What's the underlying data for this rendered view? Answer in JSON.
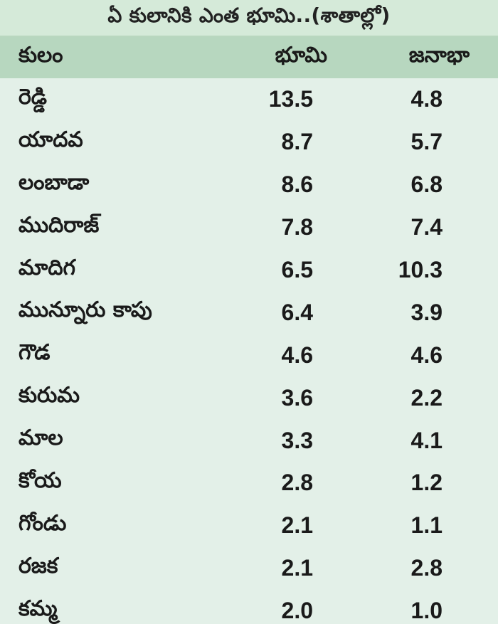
{
  "chart_data": {
    "type": "table",
    "title": "ఏ కులానికి ఎంత భూమి..(శాతాల్లో)",
    "columns": [
      "కులం",
      "భూమి",
      "జనాభా"
    ],
    "rows": [
      {
        "caste": "రెడ్డి",
        "land": "13.5",
        "population": "4.8"
      },
      {
        "caste": "యాదవ",
        "land": "8.7",
        "population": "5.7"
      },
      {
        "caste": "లంబాడా",
        "land": "8.6",
        "population": "6.8"
      },
      {
        "caste": "ముదిరాజ్",
        "land": "7.8",
        "population": "7.4"
      },
      {
        "caste": "మాదిగ",
        "land": "6.5",
        "population": "10.3"
      },
      {
        "caste": "మున్నూరు కాపు",
        "land": "6.4",
        "population": "3.9"
      },
      {
        "caste": "గౌడ",
        "land": "4.6",
        "population": "4.6"
      },
      {
        "caste": "కురుమ",
        "land": "3.6",
        "population": "2.2"
      },
      {
        "caste": "మాల",
        "land": "3.3",
        "population": "4.1"
      },
      {
        "caste": "కోయ",
        "land": "2.8",
        "population": "1.2"
      },
      {
        "caste": "గోండు",
        "land": "2.1",
        "population": "1.1"
      },
      {
        "caste": "రజక",
        "land": "2.1",
        "population": "2.8"
      },
      {
        "caste": "కమ్మ",
        "land": "2.0",
        "population": "1.0"
      }
    ]
  },
  "colors": {
    "background": "#e3f0e8",
    "title_bar": "#d5ead9",
    "header_row": "#b7d7bf",
    "text": "#1a1a1a"
  }
}
